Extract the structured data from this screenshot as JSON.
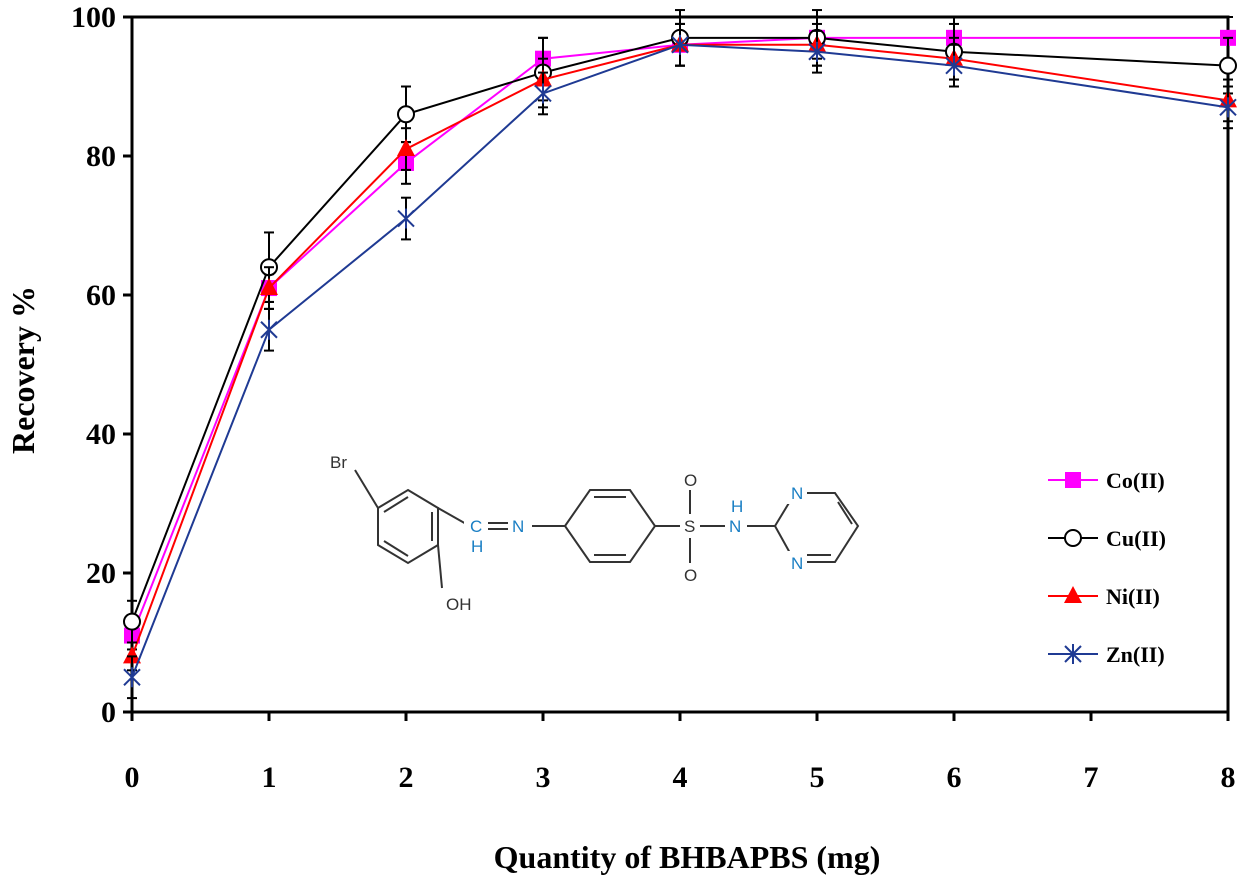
{
  "chart_data": {
    "type": "line",
    "title": "",
    "xlabel": "Quantity of BHBAPBS (mg)",
    "ylabel": "Recovery %",
    "xlim": [
      0,
      8
    ],
    "ylim": [
      0,
      100
    ],
    "x_ticks": [
      "0",
      "1",
      "2",
      "3",
      "4",
      "5",
      "6",
      "7",
      "8"
    ],
    "y_ticks": [
      "0",
      "20",
      "40",
      "60",
      "80",
      "100"
    ],
    "x": [
      0,
      1,
      2,
      3,
      4,
      5,
      6,
      8
    ],
    "grid": false,
    "legend_position": "right",
    "series": [
      {
        "name": "Co(II)",
        "marker": "square",
        "color": "#ff00ff",
        "values": [
          11,
          61,
          79,
          94,
          96,
          97,
          97,
          97
        ],
        "error": [
          2,
          2,
          3,
          3,
          3,
          3,
          3,
          3
        ]
      },
      {
        "name": "Cu(II)",
        "marker": "circle-open",
        "color": "#000000",
        "values": [
          13,
          64,
          86,
          92,
          97,
          97,
          95,
          93
        ],
        "error": [
          3,
          5,
          4,
          5,
          4,
          4,
          4,
          4
        ]
      },
      {
        "name": "Ni(II)",
        "marker": "triangle",
        "color": "#ff0000",
        "values": [
          8,
          61,
          81,
          91,
          96,
          96,
          94,
          88
        ],
        "error": [
          2,
          3,
          3,
          3,
          3,
          3,
          3,
          3
        ]
      },
      {
        "name": "Zn(II)",
        "marker": "star",
        "color": "#1f3a93",
        "values": [
          5,
          55,
          71,
          89,
          96,
          95,
          93,
          87
        ],
        "error": [
          3,
          3,
          3,
          3,
          3,
          3,
          3,
          3
        ]
      }
    ]
  },
  "structure": {
    "labels": [
      "Br",
      "C",
      "H",
      "N",
      "O",
      "S",
      "O",
      "H",
      "N",
      "N",
      "N",
      "OH"
    ],
    "colors": {
      "atom_text": "#1a7fc4",
      "bond": "#333333"
    }
  }
}
